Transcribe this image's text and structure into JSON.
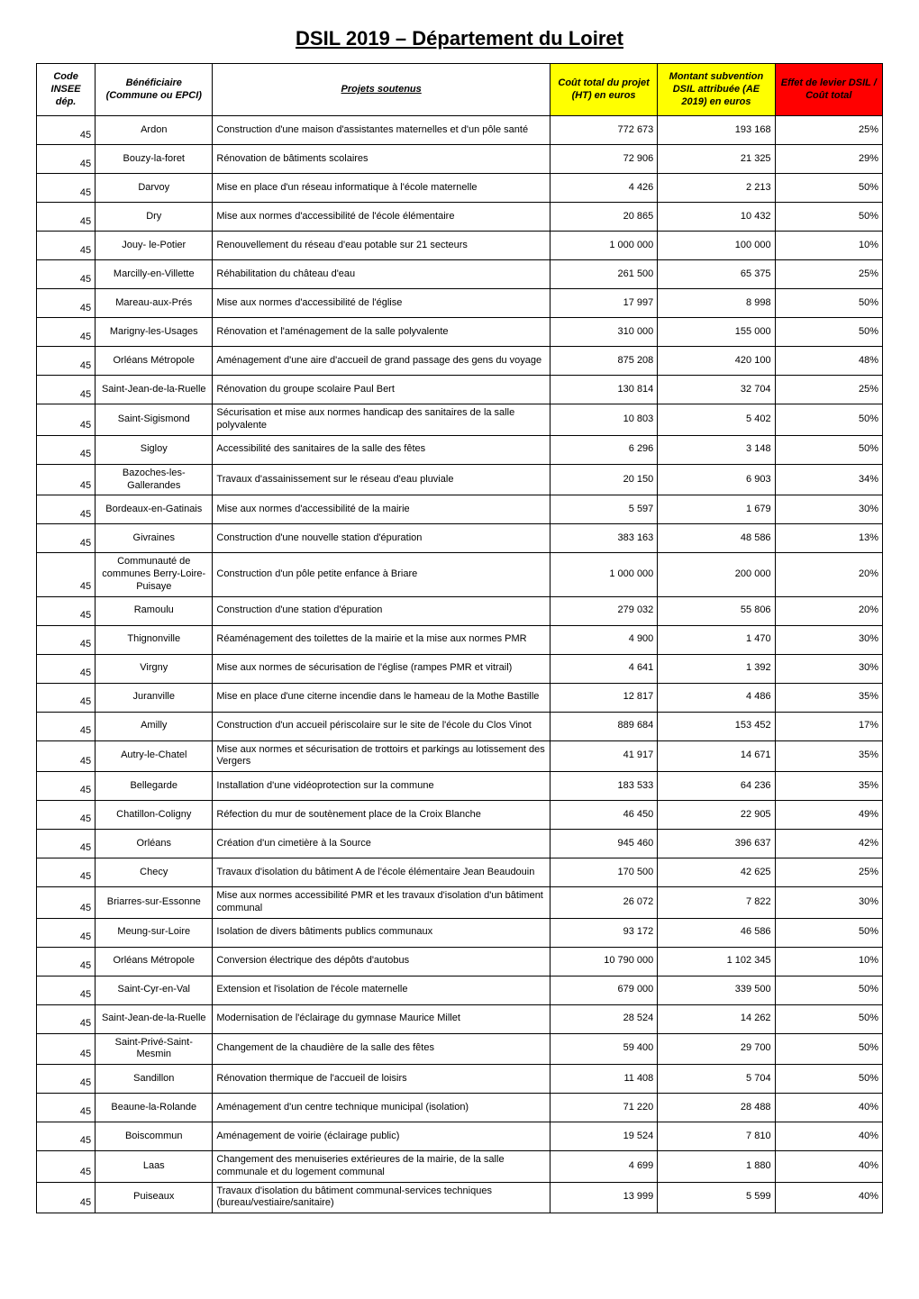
{
  "title": "DSIL 2019 – Département du Loiret",
  "table": {
    "columns": [
      {
        "label": "Code INSEE dép.",
        "class": ""
      },
      {
        "label": "Bénéficiaire (Commune ou EPCI)",
        "class": ""
      },
      {
        "label": "Projets soutenus",
        "class": "u"
      },
      {
        "label": "Coût total du projet (HT) en euros",
        "class": "yellow"
      },
      {
        "label": "Montant subvention DSIL attribuée (AE 2019) en euros",
        "class": "yellow"
      },
      {
        "label": "Effet de levier DSIL / Coût total",
        "class": "red"
      }
    ],
    "rows": [
      {
        "code": "45",
        "benef": "Ardon",
        "proj": "Construction d'une maison d'assistantes maternelles et d'un pôle santé",
        "cout": "772 673",
        "mont": "193 168",
        "eff": "25%"
      },
      {
        "code": "45",
        "benef": "Bouzy-la-foret",
        "proj": "Rénovation de bâtiments scolaires",
        "cout": "72 906",
        "mont": "21 325",
        "eff": "29%"
      },
      {
        "code": "45",
        "benef": "Darvoy",
        "proj": "Mise en place d'un réseau informatique à l'école maternelle",
        "cout": "4 426",
        "mont": "2 213",
        "eff": "50%"
      },
      {
        "code": "45",
        "benef": "Dry",
        "proj": "Mise aux normes d'accessibilité de l'école élémentaire",
        "cout": "20 865",
        "mont": "10 432",
        "eff": "50%"
      },
      {
        "code": "45",
        "benef": "Jouy- le-Potier",
        "proj": "Renouvellement du réseau d'eau potable sur 21 secteurs",
        "cout": "1 000 000",
        "mont": "100 000",
        "eff": "10%"
      },
      {
        "code": "45",
        "benef": "Marcilly-en-Villette",
        "proj": "Réhabilitation du château d'eau",
        "cout": "261 500",
        "mont": "65 375",
        "eff": "25%"
      },
      {
        "code": "45",
        "benef": "Mareau-aux-Prés",
        "proj": "Mise aux normes d'accessibilité de l'église",
        "cout": "17 997",
        "mont": "8 998",
        "eff": "50%"
      },
      {
        "code": "45",
        "benef": "Marigny-les-Usages",
        "proj": "Rénovation et l'aménagement de la salle polyvalente",
        "cout": "310 000",
        "mont": "155 000",
        "eff": "50%"
      },
      {
        "code": "45",
        "benef": "Orléans Métropole",
        "proj": "Aménagement d'une aire d'accueil de grand passage des gens du voyage",
        "cout": "875 208",
        "mont": "420 100",
        "eff": "48%"
      },
      {
        "code": "45",
        "benef": "Saint-Jean-de-la-Ruelle",
        "proj": "Rénovation du groupe scolaire Paul Bert",
        "cout": "130 814",
        "mont": "32 704",
        "eff": "25%"
      },
      {
        "code": "45",
        "benef": "Saint-Sigismond",
        "proj": "Sécurisation et mise aux normes handicap des sanitaires de la salle  polyvalente",
        "cout": "10 803",
        "mont": "5 402",
        "eff": "50%"
      },
      {
        "code": "45",
        "benef": "Sigloy",
        "proj": "Accessibilité des sanitaires de la salle des fêtes",
        "cout": "6 296",
        "mont": "3 148",
        "eff": "50%"
      },
      {
        "code": "45",
        "benef": "Bazoches-les-Gallerandes",
        "proj": "Travaux d'assainissement sur le réseau d'eau pluviale",
        "cout": "20 150",
        "mont": "6 903",
        "eff": "34%"
      },
      {
        "code": "45",
        "benef": "Bordeaux-en-Gatinais",
        "proj": "Mise aux normes d'accessibilité de la mairie",
        "cout": "5 597",
        "mont": "1 679",
        "eff": "30%"
      },
      {
        "code": "45",
        "benef": "Givraines",
        "proj": "Construction d'une nouvelle station d'épuration",
        "cout": "383 163",
        "mont": "48 586",
        "eff": "13%"
      },
      {
        "code": "45",
        "benef": "Communauté de communes Berry-Loire-Puisaye",
        "proj": "Construction d'un pôle petite enfance à Briare",
        "cout": "1 000 000",
        "mont": "200 000",
        "eff": "20%"
      },
      {
        "code": "45",
        "benef": "Ramoulu",
        "proj": "Construction d'une station d'épuration",
        "cout": "279 032",
        "mont": "55 806",
        "eff": "20%"
      },
      {
        "code": "45",
        "benef": "Thignonville",
        "proj": "Réaménagement des toilettes de la mairie et la mise aux normes PMR",
        "cout": "4 900",
        "mont": "1 470",
        "eff": "30%"
      },
      {
        "code": "45",
        "benef": "Virgny",
        "proj": "Mise aux normes de sécurisation de l'église (rampes PMR et vitrail)",
        "cout": "4 641",
        "mont": "1 392",
        "eff": "30%"
      },
      {
        "code": "45",
        "benef": "Juranville",
        "proj": "Mise en place d'une citerne incendie dans le hameau de la Mothe Bastille",
        "cout": "12 817",
        "mont": "4 486",
        "eff": "35%"
      },
      {
        "code": "45",
        "benef": "Amilly",
        "proj": "Construction d'un accueil périscolaire sur le site de l'école du Clos Vinot",
        "cout": "889 684",
        "mont": "153 452",
        "eff": "17%"
      },
      {
        "code": "45",
        "benef": "Autry-le-Chatel",
        "proj": "Mise aux normes et sécurisation de trottoirs et parkings au lotissement des Vergers",
        "cout": "41 917",
        "mont": "14 671",
        "eff": "35%"
      },
      {
        "code": "45",
        "benef": "Bellegarde",
        "proj": "Installation d'une vidéoprotection sur la commune",
        "cout": "183 533",
        "mont": "64 236",
        "eff": "35%"
      },
      {
        "code": "45",
        "benef": "Chatillon-Coligny",
        "proj": "Réfection du mur de soutènement place de la Croix Blanche",
        "cout": "46 450",
        "mont": "22 905",
        "eff": "49%"
      },
      {
        "code": "45",
        "benef": "Orléans",
        "proj": "Création d'un cimetière à la Source",
        "cout": "945 460",
        "mont": "396 637",
        "eff": "42%"
      },
      {
        "code": "45",
        "benef": "Checy",
        "proj": "Travaux d'isolation du bâtiment A de l'école élémentaire Jean Beaudouin",
        "cout": "170 500",
        "mont": "42 625",
        "eff": "25%"
      },
      {
        "code": "45",
        "benef": "Briarres-sur-Essonne",
        "proj": "Mise aux normes accessibilité PMR et les travaux d'isolation  d'un bâtiment communal",
        "cout": "26 072",
        "mont": "7 822",
        "eff": "30%"
      },
      {
        "code": "45",
        "benef": "Meung-sur-Loire",
        "proj": "Isolation de divers bâtiments publics communaux",
        "cout": "93 172",
        "mont": "46 586",
        "eff": "50%"
      },
      {
        "code": "45",
        "benef": "Orléans Métropole",
        "proj": "Conversion électrique des dépôts d'autobus",
        "cout": "10 790 000",
        "mont": "1 102 345",
        "eff": "10%"
      },
      {
        "code": "45",
        "benef": "Saint-Cyr-en-Val",
        "proj": "Extension et l'isolation de l'école maternelle",
        "cout": "679 000",
        "mont": "339 500",
        "eff": "50%"
      },
      {
        "code": "45",
        "benef": "Saint-Jean-de-la-Ruelle",
        "proj": "Modernisation de l'éclairage du gymnase Maurice Millet",
        "cout": "28 524",
        "mont": "14 262",
        "eff": "50%"
      },
      {
        "code": "45",
        "benef": "Saint-Privé-Saint-Mesmin",
        "proj": "Changement de la chaudière de la salle des fêtes",
        "cout": "59 400",
        "mont": "29 700",
        "eff": "50%"
      },
      {
        "code": "45",
        "benef": "Sandillon",
        "proj": "Rénovation thermique de l'accueil de loisirs",
        "cout": "11 408",
        "mont": "5 704",
        "eff": "50%"
      },
      {
        "code": "45",
        "benef": "Beaune-la-Rolande",
        "proj": "Aménagement d'un centre technique municipal (isolation)",
        "cout": "71 220",
        "mont": "28 488",
        "eff": "40%"
      },
      {
        "code": "45",
        "benef": "Boiscommun",
        "proj": "Aménagement de voirie (éclairage public)",
        "cout": "19 524",
        "mont": "7 810",
        "eff": "40%"
      },
      {
        "code": "45",
        "benef": "Laas",
        "proj": "Changement des menuiseries extérieures de la mairie, de la salle communale et du logement communal",
        "cout": "4 699",
        "mont": "1 880",
        "eff": "40%"
      },
      {
        "code": "45",
        "benef": "Puiseaux",
        "proj": "Travaux d'isolation du bâtiment communal-services techniques (bureau/vestiaire/sanitaire)",
        "cout": "13 999",
        "mont": "5 599",
        "eff": "40%"
      }
    ]
  }
}
